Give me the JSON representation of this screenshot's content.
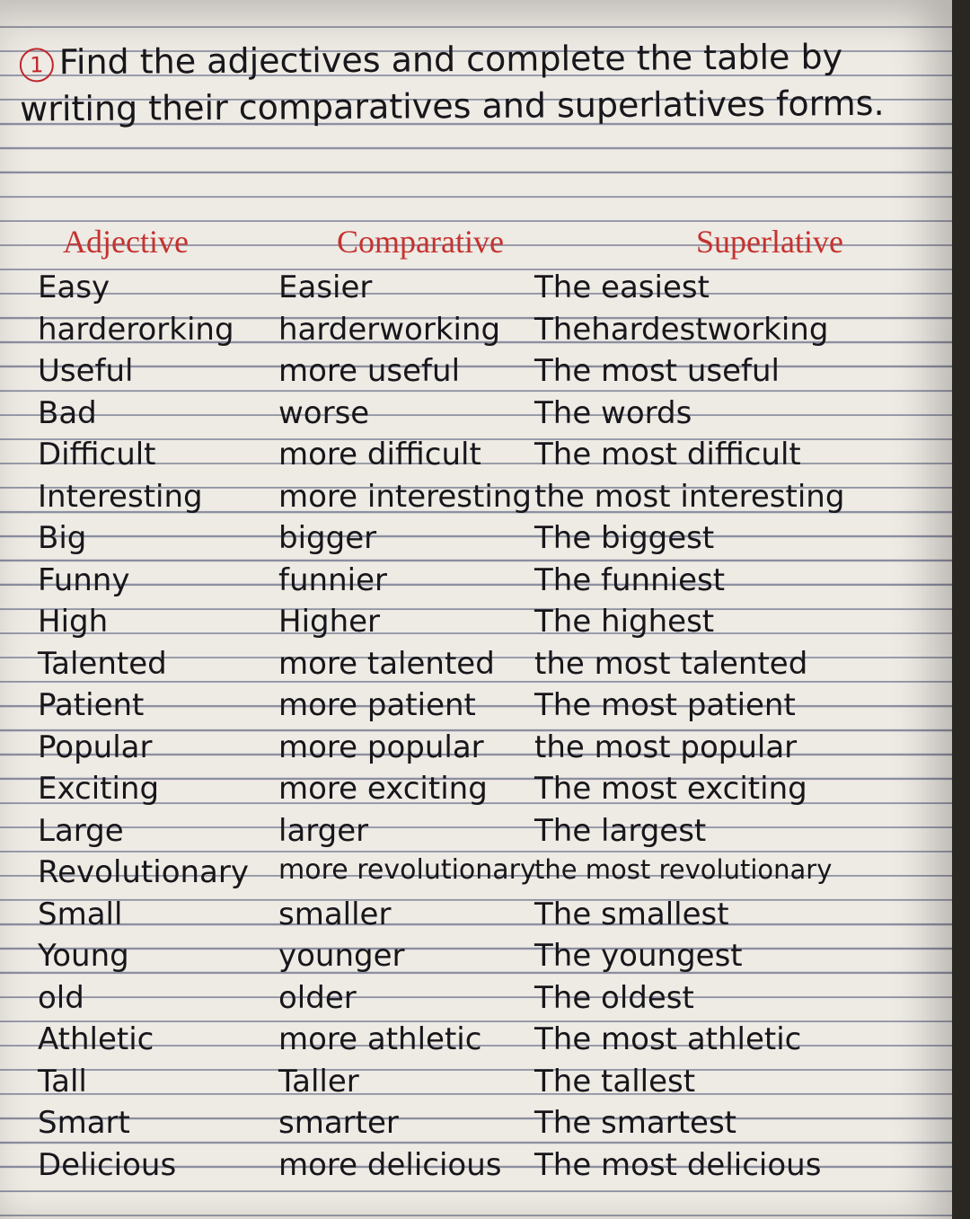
{
  "exercise": {
    "number": "1",
    "instruction": "Find the adjectives and complete the table by writing their comparatives and superlatives forms."
  },
  "table": {
    "headers": [
      "Adjective",
      "Comparative",
      "Superlative"
    ],
    "rows": [
      [
        "Easy",
        "Easier",
        "The easiest"
      ],
      [
        "harderorking",
        "harderworking",
        "Thehardestworking"
      ],
      [
        "Useful",
        "more useful",
        "The most useful"
      ],
      [
        "Bad",
        "worse",
        "The words"
      ],
      [
        "Difficult",
        "more difficult",
        "The most difficult"
      ],
      [
        "Interesting",
        "more interesting",
        "the most interesting"
      ],
      [
        "Big",
        "bigger",
        "The biggest"
      ],
      [
        "Funny",
        "funnier",
        "The funniest"
      ],
      [
        "High",
        "Higher",
        "The highest"
      ],
      [
        "Talented",
        "more talented",
        "the most talented"
      ],
      [
        "Patient",
        "more patient",
        "The most patient"
      ],
      [
        "Popular",
        "more popular",
        "the most popular"
      ],
      [
        "Exciting",
        "more exciting",
        "The most exciting"
      ],
      [
        "Large",
        "larger",
        "The largest"
      ],
      [
        "Revolutionary",
        "more revolutionary",
        "the most revolutionary"
      ],
      [
        "Small",
        "smaller",
        "The smallest"
      ],
      [
        "Young",
        "younger",
        "The youngest"
      ],
      [
        "old",
        "older",
        "The oldest"
      ],
      [
        "Athletic",
        "more athletic",
        "The most athletic"
      ],
      [
        "Tall",
        "Taller",
        "The tallest"
      ],
      [
        "Smart",
        "smarter",
        "The smartest"
      ],
      [
        "Delicious",
        "more delicious",
        "The most delicious"
      ]
    ]
  },
  "colors": {
    "ink": "#17161a",
    "header_ink": "#c5322f",
    "rule_lines": "#8c8fa0",
    "paper": "#eeeae4"
  }
}
